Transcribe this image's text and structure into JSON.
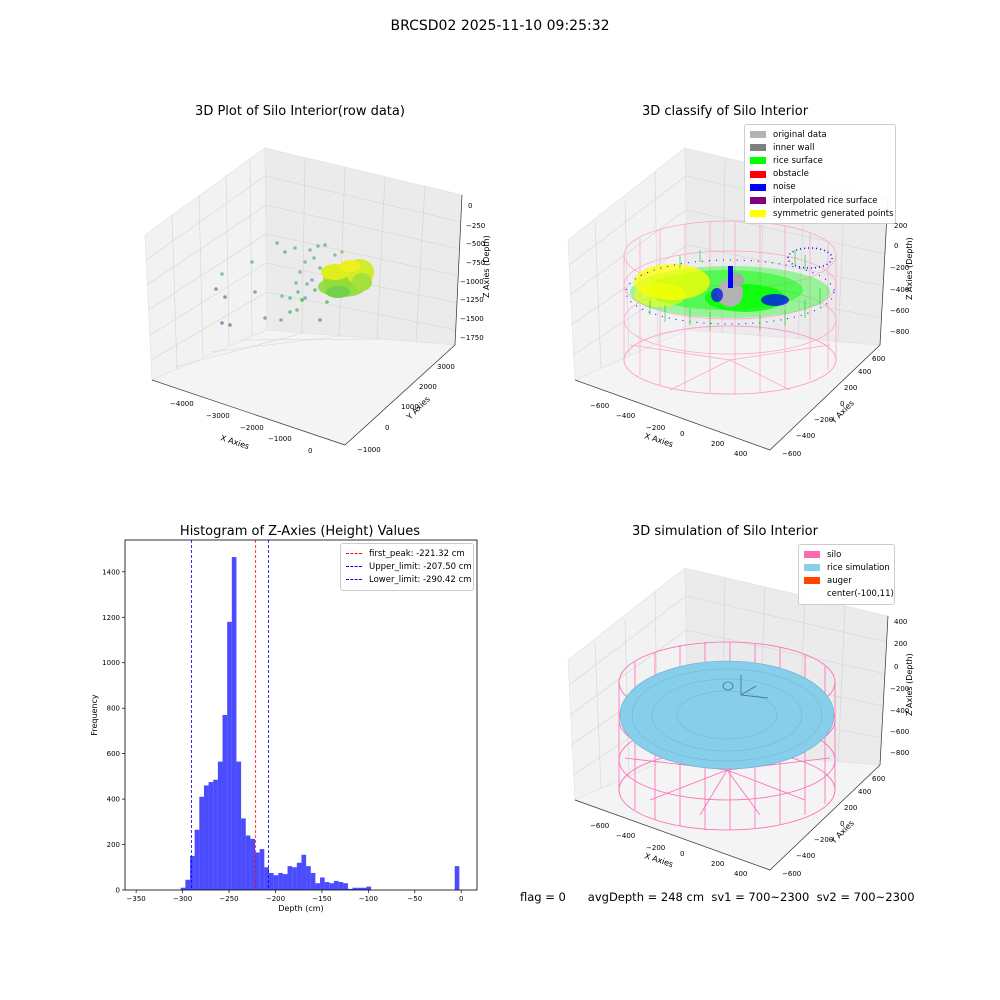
{
  "suptitle": "BRCSD02 2025-11-10 09:25:32",
  "panel1": {
    "title": "3D Plot of Silo Interior(row data)",
    "xlabel": "X Axies",
    "ylabel": "Y Axies",
    "zlabel": "Z Axies (Depth)",
    "xticks": [
      "−4000",
      "−3000",
      "−2000",
      "−1000",
      "0"
    ],
    "yticks": [
      "−1000",
      "0",
      "1000",
      "2000",
      "3000"
    ],
    "zticks": [
      "0",
      "−250",
      "−500",
      "−750",
      "−1000",
      "−1250",
      "−1500",
      "−1750"
    ]
  },
  "panel2": {
    "title": "3D classify of Silo Interior",
    "xlabel": "X Axies",
    "ylabel": "Y Axies",
    "zlabel": "Z Axies (Depth)",
    "xticks": [
      "−600",
      "−400",
      "−200",
      "0",
      "200",
      "400"
    ],
    "yticks": [
      "−600",
      "−400",
      "−200",
      "0",
      "200",
      "400",
      "600"
    ],
    "zticks": [
      "200",
      "0",
      "−200",
      "−400",
      "−600",
      "−800"
    ],
    "legend": [
      {
        "label": "original data",
        "color": "#b3b3b3"
      },
      {
        "label": "inner wall",
        "color": "#808080"
      },
      {
        "label": "rice surface",
        "color": "#00ff00"
      },
      {
        "label": "obstacle",
        "color": "#ff0000"
      },
      {
        "label": "noise",
        "color": "#0000ff"
      },
      {
        "label": "interpolated rice surface",
        "color": "#800080"
      },
      {
        "label": "symmetric generated points",
        "color": "#ffff00"
      }
    ]
  },
  "panel3": {
    "title": "Histogram of Z-Axies (Height) Values",
    "xlabel": "Depth (cm)",
    "ylabel": "Frequency",
    "legend": [
      {
        "label": "first_peak: -221.32 cm",
        "color": "#ff0000"
      },
      {
        "label": "Upper_limit: -207.50 cm",
        "color": "#0000ff"
      },
      {
        "label": "Lower_limit: -290.42 cm",
        "color": "#0000ff"
      }
    ]
  },
  "panel4": {
    "title": "3D simulation of Silo Interior",
    "xlabel": "X Axies",
    "ylabel": "Y Axies",
    "zlabel": "Z Axies (Depth)",
    "xticks": [
      "−600",
      "−400",
      "−200",
      "0",
      "200",
      "400"
    ],
    "yticks": [
      "−600",
      "−400",
      "−200",
      "0",
      "200",
      "400",
      "600"
    ],
    "zticks": [
      "400",
      "200",
      "0",
      "−200",
      "−400",
      "−600",
      "−800"
    ],
    "legend": [
      {
        "label": "silo",
        "color": "#ff69b4"
      },
      {
        "label": "rice simulation",
        "color": "#87ceeb"
      },
      {
        "label": "auger",
        "color": "#ff4500"
      },
      {
        "label": "center(-100,11)",
        "color": "none"
      }
    ]
  },
  "footer": {
    "flag": "flag = 0",
    "avg": "avgDepth = 248 cm",
    "sv1": "sv1 = 700~2300",
    "sv2": "sv2 = 700~2300"
  },
  "chart_data": [
    {
      "type": "bar",
      "title": "Histogram of Z-Axies (Height) Values",
      "xlabel": "Depth (cm)",
      "ylabel": "Frequency",
      "xlim": [
        -362,
        17
      ],
      "ylim": [
        0,
        1540
      ],
      "x_ticks": [
        -350,
        -300,
        -250,
        -200,
        -150,
        -100,
        -50,
        0
      ],
      "y_ticks": [
        0,
        200,
        400,
        600,
        800,
        1000,
        1200,
        1400
      ],
      "bin_width": 5,
      "bins": [
        {
          "x": -302,
          "v": 10
        },
        {
          "x": -297,
          "v": 45
        },
        {
          "x": -292,
          "v": 150
        },
        {
          "x": -287,
          "v": 265
        },
        {
          "x": -282,
          "v": 410
        },
        {
          "x": -277,
          "v": 460
        },
        {
          "x": -272,
          "v": 475
        },
        {
          "x": -267,
          "v": 485
        },
        {
          "x": -262,
          "v": 565
        },
        {
          "x": -257,
          "v": 770
        },
        {
          "x": -252,
          "v": 1180
        },
        {
          "x": -247,
          "v": 1465
        },
        {
          "x": -242,
          "v": 565
        },
        {
          "x": -237,
          "v": 315
        },
        {
          "x": -232,
          "v": 240
        },
        {
          "x": -227,
          "v": 225
        },
        {
          "x": -222,
          "v": 165
        },
        {
          "x": -217,
          "v": 180
        },
        {
          "x": -212,
          "v": 100
        },
        {
          "x": -207,
          "v": 75
        },
        {
          "x": -202,
          "v": 65
        },
        {
          "x": -197,
          "v": 75
        },
        {
          "x": -192,
          "v": 70
        },
        {
          "x": -187,
          "v": 105
        },
        {
          "x": -182,
          "v": 100
        },
        {
          "x": -177,
          "v": 120
        },
        {
          "x": -172,
          "v": 155
        },
        {
          "x": -167,
          "v": 105
        },
        {
          "x": -162,
          "v": 75
        },
        {
          "x": -157,
          "v": 30
        },
        {
          "x": -152,
          "v": 55
        },
        {
          "x": -147,
          "v": 35
        },
        {
          "x": -142,
          "v": 30
        },
        {
          "x": -137,
          "v": 40
        },
        {
          "x": -132,
          "v": 35
        },
        {
          "x": -127,
          "v": 30
        },
        {
          "x": -122,
          "v": 5
        },
        {
          "x": -117,
          "v": 10
        },
        {
          "x": -112,
          "v": 10
        },
        {
          "x": -107,
          "v": 10
        },
        {
          "x": -102,
          "v": 15
        },
        {
          "x": -7,
          "v": 105
        }
      ],
      "vlines": [
        {
          "name": "first_peak",
          "x": -221.32,
          "color": "#ff0000"
        },
        {
          "name": "Upper_limit",
          "x": -207.5,
          "color": "#0000ff"
        },
        {
          "name": "Lower_limit",
          "x": -290.42,
          "color": "#0000ff"
        }
      ]
    }
  ]
}
